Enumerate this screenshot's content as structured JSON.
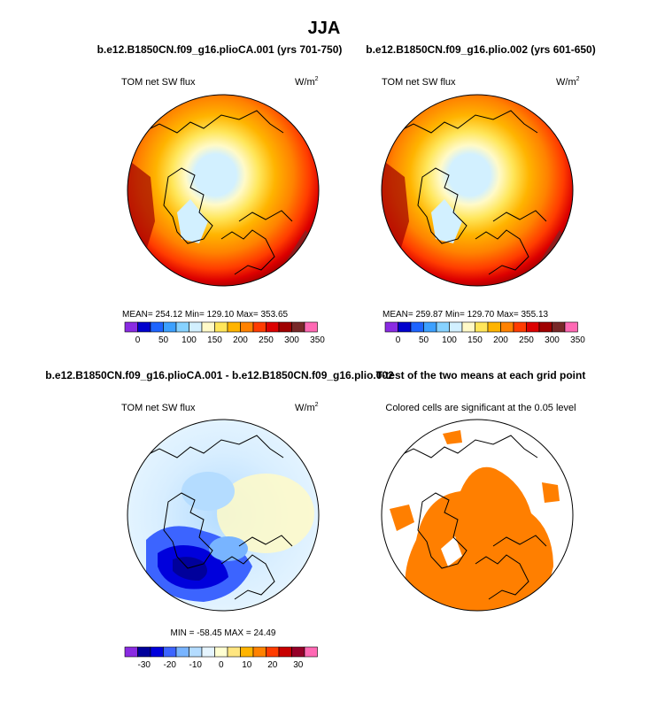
{
  "figure": {
    "title": "JJA"
  },
  "panel_a": {
    "title": "b.e12.B1850CN.f09_g16.plioCA.001 (yrs 701-750)",
    "label_left": "TOM net SW flux",
    "units": "W/m",
    "units_exp": "2",
    "stats": "MEAN= 254.12   Min= 129.10   Max= 353.65",
    "colorbar_ticks": [
      "0",
      "50",
      "100",
      "150",
      "200",
      "250",
      "300",
      "350"
    ]
  },
  "panel_b": {
    "title": "b.e12.B1850CN.f09_g16.plio.002 (yrs 601-650)",
    "label_left": "TOM net SW flux",
    "units": "W/m",
    "units_exp": "2",
    "stats": "MEAN= 259.87   Min= 129.70   Max= 355.13",
    "colorbar_ticks": [
      "0",
      "50",
      "100",
      "150",
      "200",
      "250",
      "300",
      "350"
    ]
  },
  "panel_c": {
    "title": "b.e12.B1850CN.f09_g16.plioCA.001 - b.e12.B1850CN.f09_g16.plio.002",
    "label_left": "TOM net SW flux",
    "units": "W/m",
    "units_exp": "2",
    "stats": "MIN = -58.45  MAX =  24.49",
    "colorbar_ticks": [
      "-30",
      "-20",
      "-10",
      "0",
      "10",
      "20",
      "30"
    ]
  },
  "panel_d": {
    "title": "T-test of the two means at each grid point",
    "subtitle": "Colored cells are significant at the 0.05 level"
  },
  "colors": {
    "abs_palette": [
      "#8a2be2",
      "#0000cd",
      "#1e64ff",
      "#3ca0ff",
      "#87d2ff",
      "#d2f0ff",
      "#fffac8",
      "#ffe65a",
      "#ffb400",
      "#ff8200",
      "#ff3c00",
      "#dc0000",
      "#a00000",
      "#782828",
      "#ff69b4"
    ],
    "diff_palette": [
      "#8a2be2",
      "#00009b",
      "#0000dc",
      "#3c64ff",
      "#78b4ff",
      "#b4dcff",
      "#e6f5ff",
      "#ffffd2",
      "#ffe680",
      "#ffb400",
      "#ff8200",
      "#ff3c00",
      "#c80000",
      "#960028",
      "#ff69b4"
    ],
    "sig_color": "#ff7f00"
  },
  "chart_data": [
    {
      "type": "heatmap",
      "projection": "north polar stereographic",
      "title": "b.e12.B1850CN.f09_g16.plioCA.001 (yrs 701-750)",
      "variable": "TOM net SW flux",
      "units": "W/m2",
      "mean": 254.12,
      "min": 129.1,
      "max": 353.65,
      "levels": [
        0,
        50,
        100,
        150,
        200,
        250,
        300,
        350
      ]
    },
    {
      "type": "heatmap",
      "projection": "north polar stereographic",
      "title": "b.e12.B1850CN.f09_g16.plio.002 (yrs 601-650)",
      "variable": "TOM net SW flux",
      "units": "W/m2",
      "mean": 259.87,
      "min": 129.7,
      "max": 355.13,
      "levels": [
        0,
        50,
        100,
        150,
        200,
        250,
        300,
        350
      ]
    },
    {
      "type": "heatmap",
      "projection": "north polar stereographic",
      "title": "b.e12.B1850CN.f09_g16.plioCA.001 - b.e12.B1850CN.f09_g16.plio.002",
      "variable": "TOM net SW flux",
      "units": "W/m2",
      "min": -58.45,
      "max": 24.49,
      "levels": [
        -30,
        -20,
        -10,
        0,
        10,
        20,
        30
      ]
    },
    {
      "type": "heatmap",
      "projection": "north polar stereographic",
      "title": "T-test of the two means at each grid point",
      "note": "Colored cells are significant at the 0.05 level",
      "significance_level": 0.05
    }
  ]
}
